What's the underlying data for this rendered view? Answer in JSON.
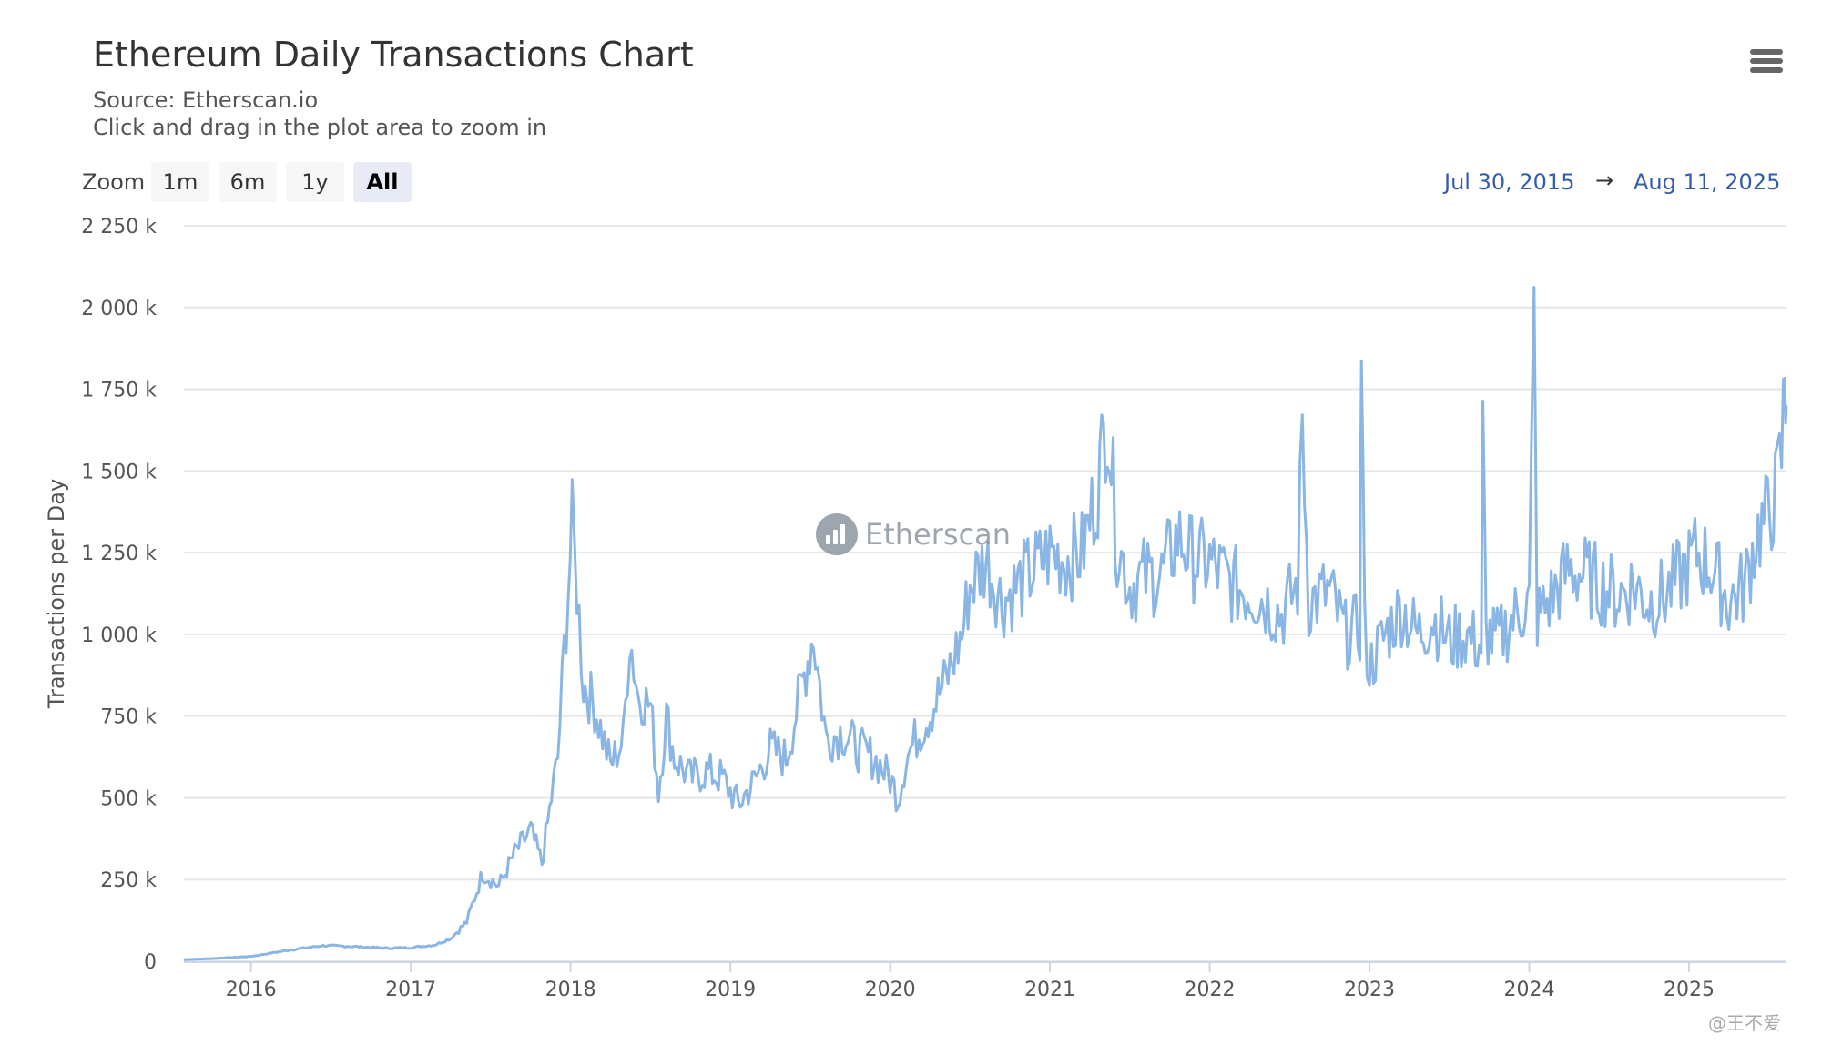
{
  "header": {
    "title": "Ethereum Daily Transactions Chart",
    "subtitle_source": "Source: Etherscan.io",
    "subtitle_hint": "Click and drag in the plot area to zoom in"
  },
  "toolbar": {
    "zoom_label": "Zoom",
    "buttons": [
      "1m",
      "6m",
      "1y",
      "All"
    ],
    "active": "All",
    "range_from": "Jul 30, 2015",
    "range_arrow": "→",
    "range_to": "Aug 11, 2025"
  },
  "watermark": {
    "text": "Etherscan"
  },
  "credit": "@王不爱",
  "colors": {
    "series": "#8ab6e6",
    "grid": "#e6e6e6",
    "range_text": "#335cad"
  },
  "icons": {
    "menu": "hamburger-menu-icon",
    "logo": "etherscan-logo-icon"
  },
  "chart_data": {
    "type": "line",
    "title": "Ethereum Daily Transactions Chart",
    "subtitle": "Source: Etherscan.io",
    "ylabel": "Transactions per Day",
    "xlabel": "",
    "xlim": [
      2015.58,
      2025.61
    ],
    "ylim": [
      0,
      2250000
    ],
    "y_ticks": [
      0,
      250000,
      500000,
      750000,
      1000000,
      1250000,
      1500000,
      1750000,
      2000000,
      2250000
    ],
    "y_tick_labels": [
      "0",
      "250 k",
      "500 k",
      "750 k",
      "1 000 k",
      "1 250 k",
      "1 500 k",
      "1 750 k",
      "2 000 k",
      "2 250 k"
    ],
    "x_tick_labels": [
      "2016",
      "2017",
      "2018",
      "2019",
      "2020",
      "2021",
      "2022",
      "2023",
      "2024",
      "2025"
    ],
    "x_ticks": [
      2016,
      2017,
      2018,
      2019,
      2020,
      2021,
      2022,
      2023,
      2024,
      2025
    ],
    "grid": true,
    "legend": "none",
    "series": [
      {
        "values": [
          [
            2015.58,
            5000
          ],
          [
            2015.75,
            8000
          ],
          [
            2016.0,
            15000
          ],
          [
            2016.25,
            35000
          ],
          [
            2016.45,
            48000
          ],
          [
            2016.65,
            45000
          ],
          [
            2016.85,
            40000
          ],
          [
            2017.0,
            42000
          ],
          [
            2017.15,
            50000
          ],
          [
            2017.25,
            70000
          ],
          [
            2017.35,
            120000
          ],
          [
            2017.45,
            270000
          ],
          [
            2017.55,
            230000
          ],
          [
            2017.65,
            330000
          ],
          [
            2017.75,
            400000
          ],
          [
            2017.82,
            300000
          ],
          [
            2017.88,
            500000
          ],
          [
            2017.92,
            620000
          ],
          [
            2017.96,
            950000
          ],
          [
            2018.01,
            1330000
          ],
          [
            2018.04,
            1150000
          ],
          [
            2018.08,
            850000
          ],
          [
            2018.15,
            780000
          ],
          [
            2018.25,
            600000
          ],
          [
            2018.33,
            680000
          ],
          [
            2018.37,
            1000000
          ],
          [
            2018.42,
            820000
          ],
          [
            2018.5,
            780000
          ],
          [
            2018.55,
            520000
          ],
          [
            2018.6,
            750000
          ],
          [
            2018.65,
            620000
          ],
          [
            2018.75,
            560000
          ],
          [
            2018.85,
            580000
          ],
          [
            2018.95,
            560000
          ],
          [
            2019.05,
            480000
          ],
          [
            2019.15,
            550000
          ],
          [
            2019.25,
            650000
          ],
          [
            2019.35,
            620000
          ],
          [
            2019.45,
            850000
          ],
          [
            2019.52,
            1000000
          ],
          [
            2019.6,
            680000
          ],
          [
            2019.7,
            700000
          ],
          [
            2019.8,
            650000
          ],
          [
            2019.9,
            620000
          ],
          [
            2020.0,
            560000
          ],
          [
            2020.05,
            500000
          ],
          [
            2020.1,
            620000
          ],
          [
            2020.18,
            700000
          ],
          [
            2020.25,
            760000
          ],
          [
            2020.35,
            860000
          ],
          [
            2020.45,
            1000000
          ],
          [
            2020.5,
            1150000
          ],
          [
            2020.6,
            1230000
          ],
          [
            2020.7,
            1100000
          ],
          [
            2020.8,
            1150000
          ],
          [
            2020.9,
            1200000
          ],
          [
            2021.0,
            1250000
          ],
          [
            2021.1,
            1230000
          ],
          [
            2021.2,
            1250000
          ],
          [
            2021.3,
            1450000
          ],
          [
            2021.36,
            1690000
          ],
          [
            2021.42,
            1280000
          ],
          [
            2021.5,
            1150000
          ],
          [
            2021.6,
            1180000
          ],
          [
            2021.7,
            1180000
          ],
          [
            2021.8,
            1300000
          ],
          [
            2021.9,
            1230000
          ],
          [
            2022.0,
            1220000
          ],
          [
            2022.15,
            1150000
          ],
          [
            2022.3,
            1120000
          ],
          [
            2022.45,
            1060000
          ],
          [
            2022.55,
            1150000
          ],
          [
            2022.58,
            1660000
          ],
          [
            2022.62,
            1100000
          ],
          [
            2022.75,
            1130000
          ],
          [
            2022.85,
            1000000
          ],
          [
            2022.94,
            1020000
          ],
          [
            2022.95,
            1930000
          ],
          [
            2022.97,
            1010000
          ],
          [
            2023.0,
            900000
          ],
          [
            2023.1,
            1000000
          ],
          [
            2023.2,
            1080000
          ],
          [
            2023.3,
            1000000
          ],
          [
            2023.4,
            1050000
          ],
          [
            2023.5,
            980000
          ],
          [
            2023.6,
            1000000
          ],
          [
            2023.7,
            960000
          ],
          [
            2023.71,
            1620000
          ],
          [
            2023.73,
            1000000
          ],
          [
            2023.8,
            980000
          ],
          [
            2023.9,
            1050000
          ],
          [
            2024.0,
            1100000
          ],
          [
            2024.03,
            1960000
          ],
          [
            2024.05,
            1050000
          ],
          [
            2024.15,
            1120000
          ],
          [
            2024.25,
            1200000
          ],
          [
            2024.35,
            1180000
          ],
          [
            2024.45,
            1150000
          ],
          [
            2024.55,
            1120000
          ],
          [
            2024.65,
            1150000
          ],
          [
            2024.75,
            1100000
          ],
          [
            2024.85,
            1120000
          ],
          [
            2024.95,
            1180000
          ],
          [
            2025.05,
            1250000
          ],
          [
            2025.15,
            1200000
          ],
          [
            2025.25,
            1100000
          ],
          [
            2025.35,
            1150000
          ],
          [
            2025.42,
            1300000
          ],
          [
            2025.48,
            1350000
          ],
          [
            2025.54,
            1420000
          ],
          [
            2025.58,
            1550000
          ],
          [
            2025.6,
            1800000
          ],
          [
            2025.61,
            1700000
          ]
        ]
      }
    ]
  }
}
